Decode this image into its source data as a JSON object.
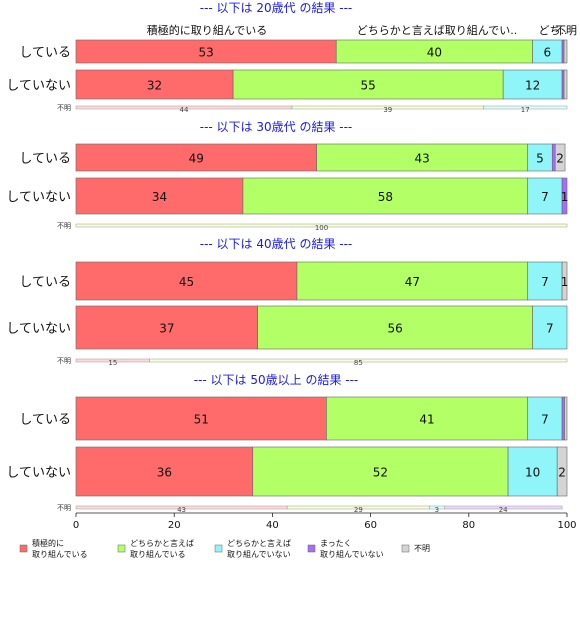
{
  "chart_data": {
    "type": "bar",
    "orientation": "horizontal",
    "stacked": true,
    "xlim": [
      0,
      100
    ],
    "x_ticks": [
      0,
      20,
      40,
      60,
      80,
      100
    ],
    "top_labels": [
      "積極的に取り組んでいる",
      "どちらかと言えば取り組んでい..",
      "どち..",
      "不明"
    ],
    "unknown_row_label": "不明",
    "categories": [
      {
        "key": "c1",
        "label_lines": [
          "積極的に",
          "取り組んでいる"
        ],
        "color": "#ff6b6b",
        "light": "#ffd9d9"
      },
      {
        "key": "c2",
        "label_lines": [
          "どちらかと言えば",
          "取り組んでいる"
        ],
        "color": "#b3ff66",
        "light": "#f4ffd6"
      },
      {
        "key": "c3",
        "label_lines": [
          "どちらかと言えば",
          "取り組んでいない"
        ],
        "color": "#8ff5f8",
        "light": "#dcfdfd"
      },
      {
        "key": "c4",
        "label_lines": [
          "まったく",
          "取り組んでいない"
        ],
        "color": "#a66bff",
        "light": "#ecd9ff"
      },
      {
        "key": "c5",
        "label_lines": [
          "不明"
        ],
        "color": "#d4d4d4",
        "light": "#f2f2f2"
      }
    ],
    "panels": [
      {
        "title": "--- 以下は 20歳代 の結果 ---",
        "rows": [
          {
            "label": "している",
            "values": [
              53,
              40,
              6,
              0.4,
              0.6
            ],
            "labels": [
              "53",
              "40",
              "6",
              "",
              ""
            ]
          },
          {
            "label": "していない",
            "values": [
              32,
              55,
              12,
              0.4,
              0.6
            ],
            "labels": [
              "32",
              "55",
              "12",
              "",
              ""
            ]
          }
        ],
        "unknown": {
          "values": [
            44,
            39,
            17,
            0,
            0
          ],
          "labels": [
            "44",
            "39",
            "17",
            "",
            ""
          ]
        }
      },
      {
        "title": "--- 以下は 30歳代 の結果 ---",
        "rows": [
          {
            "label": "している",
            "values": [
              49,
              43,
              5,
              0.6,
              2
            ],
            "labels": [
              "49",
              "43",
              "5",
              "",
              "2"
            ]
          },
          {
            "label": "していない",
            "values": [
              34,
              58,
              7,
              1,
              0
            ],
            "labels": [
              "34",
              "58",
              "7",
              "1",
              ""
            ]
          }
        ],
        "unknown": {
          "values": [
            0,
            100,
            0,
            0,
            0
          ],
          "labels": [
            "",
            "100",
            "",
            "",
            ""
          ]
        }
      },
      {
        "title": "--- 以下は 40歳代 の結果 ---",
        "rows": [
          {
            "label": "している",
            "values": [
              45,
              47,
              7,
              0,
              1
            ],
            "labels": [
              "45",
              "47",
              "7",
              "",
              "1"
            ]
          },
          {
            "label": "していない",
            "values": [
              37,
              56,
              7,
              0,
              0
            ],
            "labels": [
              "37",
              "56",
              "7",
              "",
              ""
            ]
          }
        ],
        "unknown": {
          "values": [
            15,
            85,
            0,
            0,
            0
          ],
          "labels": [
            "15",
            "85",
            "",
            "",
            ""
          ]
        }
      },
      {
        "title": "--- 以下は 50歳以上 の結果 ---",
        "rows": [
          {
            "label": "している",
            "values": [
              51,
              41,
              7,
              0.5,
              0.5
            ],
            "labels": [
              "51",
              "41",
              "7",
              "",
              ""
            ]
          },
          {
            "label": "していない",
            "values": [
              36,
              52,
              10,
              0,
              2
            ],
            "labels": [
              "36",
              "52",
              "10",
              "",
              "2"
            ]
          }
        ],
        "unknown": {
          "values": [
            43,
            29,
            3,
            24,
            0
          ],
          "labels": [
            "43",
            "29",
            "3",
            "24",
            ""
          ]
        }
      }
    ]
  }
}
